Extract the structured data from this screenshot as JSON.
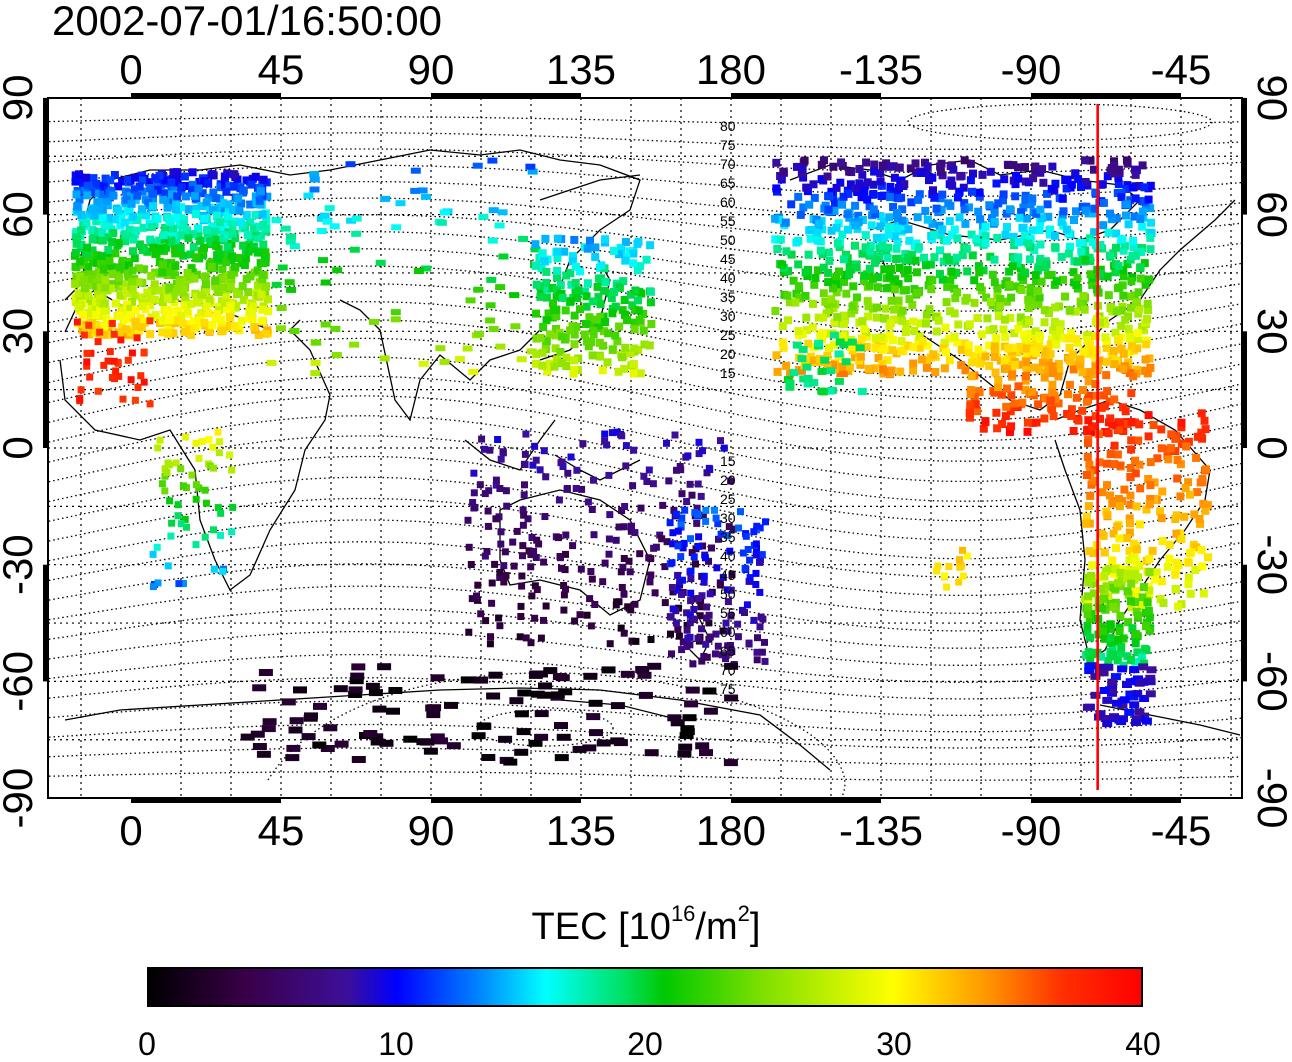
{
  "timestamp": "2002-07-01/16:50:00",
  "map": {
    "top_lon_labels": [
      "0",
      "45",
      "90",
      "135",
      "180",
      "-135",
      "-90",
      "-45"
    ],
    "bottom_lon_labels": [
      "0",
      "45",
      "90",
      "135",
      "180",
      "-135",
      "-90",
      "-45"
    ],
    "left_lat_labels": [
      "90",
      "60",
      "30",
      "0",
      "-30",
      "-60",
      "-90"
    ],
    "right_lat_labels": [
      "90",
      "60",
      "30",
      "0",
      "-30",
      "-60",
      "-90"
    ],
    "contour_labels_north": [
      "80",
      "75",
      "70",
      "65",
      "60",
      "55",
      "50",
      "45",
      "40",
      "35",
      "30",
      "25",
      "20",
      "15"
    ],
    "contour_labels_south": [
      "15",
      "20",
      "25",
      "30",
      "35",
      "40",
      "45",
      "50",
      "55",
      "60",
      "65",
      "70",
      "75"
    ],
    "marker_longitude": -70,
    "marker_color": "#ff0000"
  },
  "colorbar": {
    "title_main": "TEC  [10",
    "title_exp1": "16",
    "title_mid": "/m",
    "title_exp2": "2",
    "title_end": "]",
    "tick_labels": [
      "0",
      "10",
      "20",
      "30",
      "40"
    ],
    "min": 0,
    "max": 40
  }
}
